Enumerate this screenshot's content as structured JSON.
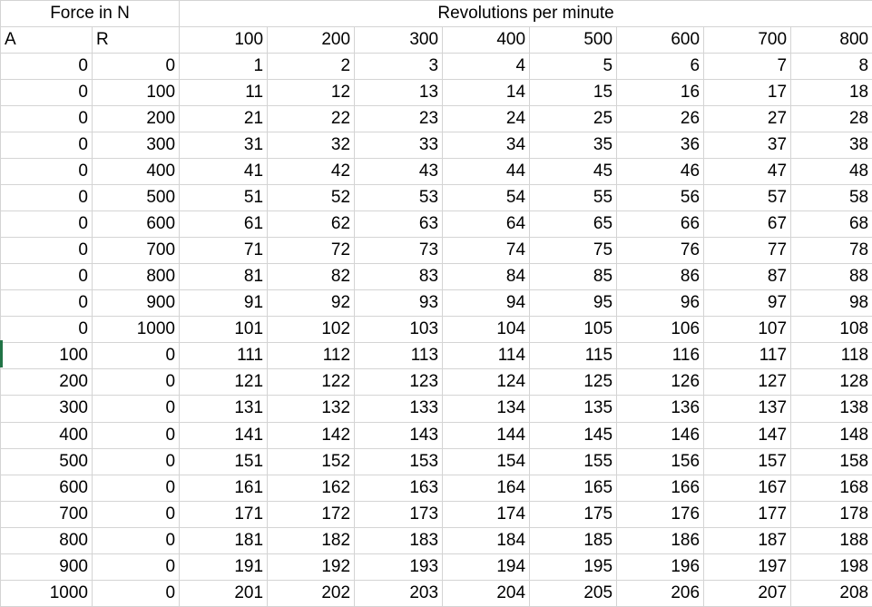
{
  "header": {
    "force_label": "Force in N",
    "rpm_label": "Revolutions per minute",
    "col_a": "A",
    "col_r": "R",
    "rpm_values": [
      "100",
      "200",
      "300",
      "400",
      "500",
      "600",
      "700",
      "800"
    ]
  },
  "rows": [
    [
      "0",
      "0",
      "1",
      "2",
      "3",
      "4",
      "5",
      "6",
      "7",
      "8"
    ],
    [
      "0",
      "100",
      "11",
      "12",
      "13",
      "14",
      "15",
      "16",
      "17",
      "18"
    ],
    [
      "0",
      "200",
      "21",
      "22",
      "23",
      "24",
      "25",
      "26",
      "27",
      "28"
    ],
    [
      "0",
      "300",
      "31",
      "32",
      "33",
      "34",
      "35",
      "36",
      "37",
      "38"
    ],
    [
      "0",
      "400",
      "41",
      "42",
      "43",
      "44",
      "45",
      "46",
      "47",
      "48"
    ],
    [
      "0",
      "500",
      "51",
      "52",
      "53",
      "54",
      "55",
      "56",
      "57",
      "58"
    ],
    [
      "0",
      "600",
      "61",
      "62",
      "63",
      "64",
      "65",
      "66",
      "67",
      "68"
    ],
    [
      "0",
      "700",
      "71",
      "72",
      "73",
      "74",
      "75",
      "76",
      "77",
      "78"
    ],
    [
      "0",
      "800",
      "81",
      "82",
      "83",
      "84",
      "85",
      "86",
      "87",
      "88"
    ],
    [
      "0",
      "900",
      "91",
      "92",
      "93",
      "94",
      "95",
      "96",
      "97",
      "98"
    ],
    [
      "0",
      "1000",
      "101",
      "102",
      "103",
      "104",
      "105",
      "106",
      "107",
      "108"
    ],
    [
      "100",
      "0",
      "111",
      "112",
      "113",
      "114",
      "115",
      "116",
      "117",
      "118"
    ],
    [
      "200",
      "0",
      "121",
      "122",
      "123",
      "124",
      "125",
      "126",
      "127",
      "128"
    ],
    [
      "300",
      "0",
      "131",
      "132",
      "133",
      "134",
      "135",
      "136",
      "137",
      "138"
    ],
    [
      "400",
      "0",
      "141",
      "142",
      "143",
      "144",
      "145",
      "146",
      "147",
      "148"
    ],
    [
      "500",
      "0",
      "151",
      "152",
      "153",
      "154",
      "155",
      "156",
      "157",
      "158"
    ],
    [
      "600",
      "0",
      "161",
      "162",
      "163",
      "164",
      "165",
      "166",
      "167",
      "168"
    ],
    [
      "700",
      "0",
      "171",
      "172",
      "173",
      "174",
      "175",
      "176",
      "177",
      "178"
    ],
    [
      "800",
      "0",
      "181",
      "182",
      "183",
      "184",
      "185",
      "186",
      "187",
      "188"
    ],
    [
      "900",
      "0",
      "191",
      "192",
      "193",
      "194",
      "195",
      "196",
      "197",
      "198"
    ],
    [
      "1000",
      "0",
      "201",
      "202",
      "203",
      "204",
      "205",
      "206",
      "207",
      "208"
    ]
  ],
  "colors": {
    "gridline": "#d4d4d4",
    "selection_accent": "#217346"
  }
}
